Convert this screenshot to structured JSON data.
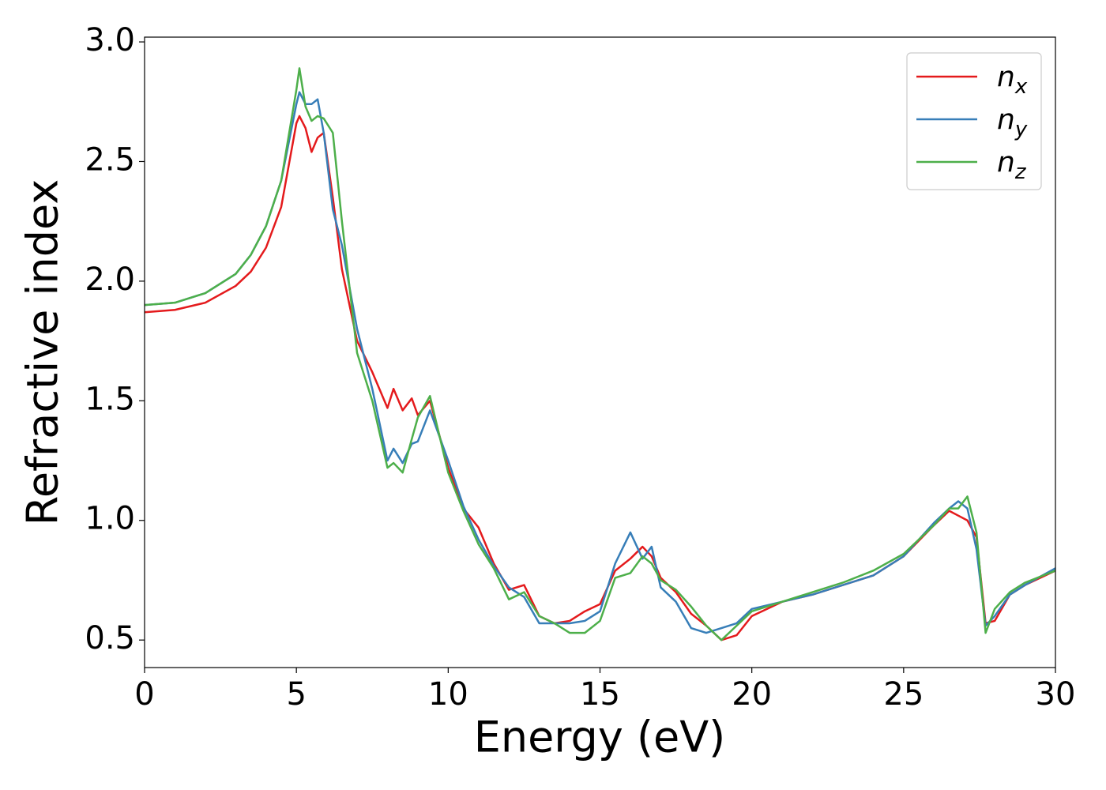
{
  "chart_data": {
    "type": "line",
    "xlabel": "Energy (eV)",
    "ylabel": "Refractive index",
    "x": [
      0,
      1,
      2,
      3,
      3.5,
      4,
      4.5,
      5,
      5.1,
      5.3,
      5.5,
      5.7,
      5.9,
      6.2,
      6.5,
      7,
      7.5,
      8,
      8.2,
      8.5,
      8.8,
      9,
      9.4,
      10,
      10.5,
      11,
      11.5,
      12,
      12.5,
      13,
      13.5,
      14,
      14.5,
      15,
      15.5,
      16,
      16.4,
      16.7,
      17,
      17.5,
      18,
      18.5,
      19,
      19.5,
      20,
      21,
      22,
      23,
      24,
      25,
      26,
      26.5,
      26.8,
      27.1,
      27.4,
      27.7,
      28,
      28.5,
      29,
      30
    ],
    "series": [
      {
        "name": "n",
        "subscript": "x",
        "color": "#e41a1c",
        "values": [
          1.87,
          1.88,
          1.91,
          1.98,
          2.04,
          2.14,
          2.31,
          2.66,
          2.69,
          2.64,
          2.54,
          2.6,
          2.62,
          2.35,
          2.05,
          1.75,
          1.62,
          1.47,
          1.55,
          1.46,
          1.51,
          1.44,
          1.5,
          1.22,
          1.05,
          0.97,
          0.82,
          0.71,
          0.73,
          0.6,
          0.57,
          0.58,
          0.62,
          0.65,
          0.79,
          0.84,
          0.89,
          0.85,
          0.76,
          0.7,
          0.61,
          0.56,
          0.5,
          0.52,
          0.6,
          0.66,
          0.69,
          0.73,
          0.77,
          0.85,
          0.98,
          1.04,
          1.02,
          1.0,
          0.93,
          0.57,
          0.58,
          0.69,
          0.73,
          0.79
        ]
      },
      {
        "name": "n",
        "subscript": "y",
        "color": "#377eb8",
        "values": [
          1.9,
          1.91,
          1.95,
          2.03,
          2.11,
          2.23,
          2.42,
          2.74,
          2.79,
          2.74,
          2.74,
          2.76,
          2.62,
          2.3,
          2.15,
          1.8,
          1.55,
          1.25,
          1.3,
          1.24,
          1.32,
          1.33,
          1.46,
          1.25,
          1.06,
          0.92,
          0.81,
          0.72,
          0.68,
          0.57,
          0.57,
          0.57,
          0.58,
          0.62,
          0.82,
          0.95,
          0.84,
          0.89,
          0.72,
          0.66,
          0.55,
          0.53,
          0.55,
          0.57,
          0.63,
          0.66,
          0.69,
          0.73,
          0.77,
          0.85,
          0.99,
          1.05,
          1.08,
          1.05,
          0.88,
          0.56,
          0.6,
          0.69,
          0.73,
          0.8
        ]
      },
      {
        "name": "n",
        "subscript": "z",
        "color": "#4daf4a",
        "values": [
          1.9,
          1.91,
          1.95,
          2.03,
          2.11,
          2.23,
          2.42,
          2.8,
          2.89,
          2.73,
          2.67,
          2.69,
          2.68,
          2.62,
          2.25,
          1.7,
          1.5,
          1.22,
          1.24,
          1.2,
          1.34,
          1.43,
          1.52,
          1.2,
          1.04,
          0.9,
          0.8,
          0.67,
          0.7,
          0.6,
          0.57,
          0.53,
          0.53,
          0.58,
          0.76,
          0.78,
          0.85,
          0.82,
          0.75,
          0.71,
          0.64,
          0.56,
          0.5,
          0.56,
          0.62,
          0.66,
          0.7,
          0.74,
          0.79,
          0.86,
          0.98,
          1.05,
          1.05,
          1.1,
          0.95,
          0.53,
          0.63,
          0.7,
          0.74,
          0.79
        ]
      }
    ],
    "xlim": [
      0,
      30
    ],
    "xticks": [
      0,
      5,
      10,
      15,
      20,
      25,
      30
    ],
    "ylim": [
      0.385,
      3.02
    ],
    "yticks": [
      {
        "value": 0.5,
        "label": "0.5"
      },
      {
        "value": 1.0,
        "label": "1.0"
      },
      1.5,
      {
        "value": 2.0,
        "label": "2.0"
      },
      2.5,
      {
        "value": 3.0,
        "label": "3.0"
      }
    ],
    "grid": false,
    "legend": "upper right"
  }
}
